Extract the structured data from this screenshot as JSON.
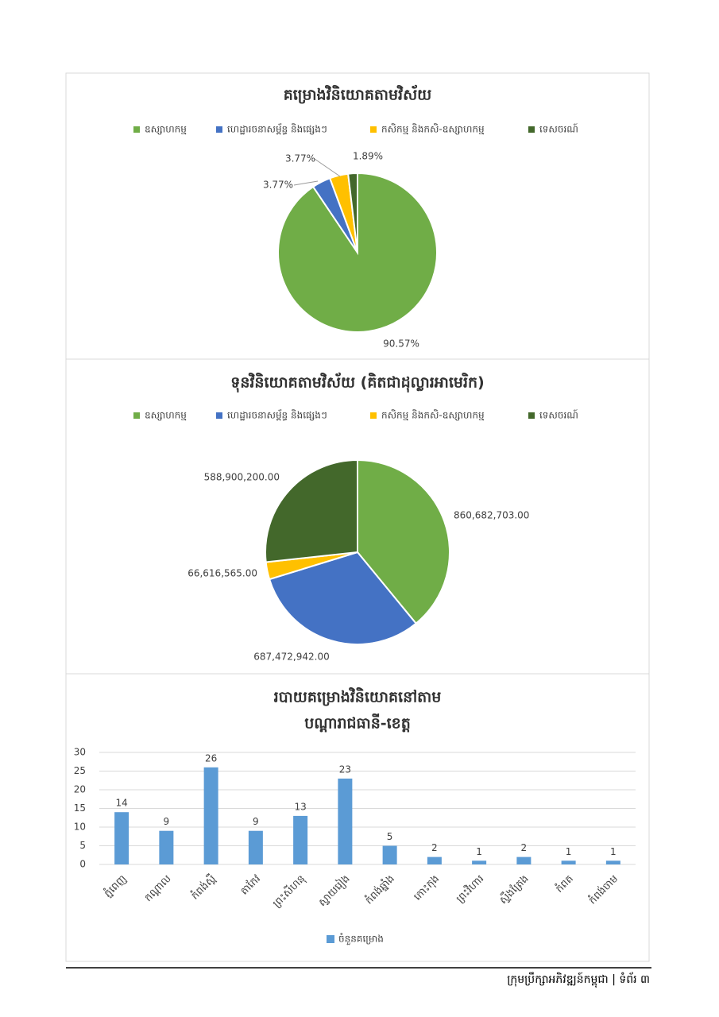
{
  "chart_data": [
    {
      "type": "pie",
      "title": "គម្រោងវិនិយោគតាមវិស័យ",
      "categories": [
        "ឧស្សាហកម្ម",
        "ហេដ្ឋារចនាសម្ព័ន្ធ និងផ្សេងៗ",
        "កសិកម្ម និងកសិ-ឧស្សាហកម្ម",
        "ទេសចរណ៍"
      ],
      "values": [
        90.57,
        3.77,
        3.77,
        1.89
      ],
      "value_labels": [
        "90.57%",
        "3.77%",
        "3.77%",
        "1.89%"
      ],
      "colors": [
        "#70ad47",
        "#4472c4",
        "#ffc000",
        "#43682b"
      ]
    },
    {
      "type": "pie",
      "title": "ទុនវិនិយោគតាមវិស័យ (គិតជាដុល្លារអាមេរិក)",
      "categories": [
        "ឧស្សាហកម្ម",
        "ហេដ្ឋារចនាសម្ព័ន្ធ និងផ្សេងៗ",
        "កសិកម្ម និងកសិ-ឧស្សាហកម្ម",
        "ទេសចរណ៍"
      ],
      "values": [
        860682703,
        687472942,
        66616565,
        588900200
      ],
      "value_labels": [
        "860,682,703.00",
        "687,472,942.00",
        "66,616,565.00",
        "588,900,200.00"
      ],
      "colors": [
        "#70ad47",
        "#4472c4",
        "#ffc000",
        "#43682b"
      ]
    },
    {
      "type": "bar",
      "title": [
        "របាយគម្រោងវិនិយោគនៅតាម",
        "បណ្តារាជធានី-ខេត្ត"
      ],
      "categories": [
        "ភ្នំពេញ",
        "កណ្តាល",
        "កំពង់ស្ពឺ",
        "តាកែវ",
        "ព្រះសីហនុ",
        "ស្វាយរៀង",
        "កំពង់ឆ្នាំង",
        "កោះកុង",
        "ព្រះវិហារ",
        "ស្ទឹងត្រែង",
        "កំពត",
        "កំពង់ចាម"
      ],
      "series": [
        {
          "name": "ចំនួនគម្រោង",
          "color": "#5b9bd5",
          "values": [
            14,
            9,
            26,
            9,
            13,
            23,
            5,
            2,
            1,
            2,
            1,
            1
          ]
        }
      ],
      "ylim": [
        0,
        30
      ],
      "yticks": [
        0,
        5,
        10,
        15,
        20,
        25,
        30
      ],
      "grid": true
    }
  ],
  "footer": "ក្រុមប្រឹក្សាអភិវឌ្ឍន៍កម្ពុជា | ទំព័រ ៣"
}
